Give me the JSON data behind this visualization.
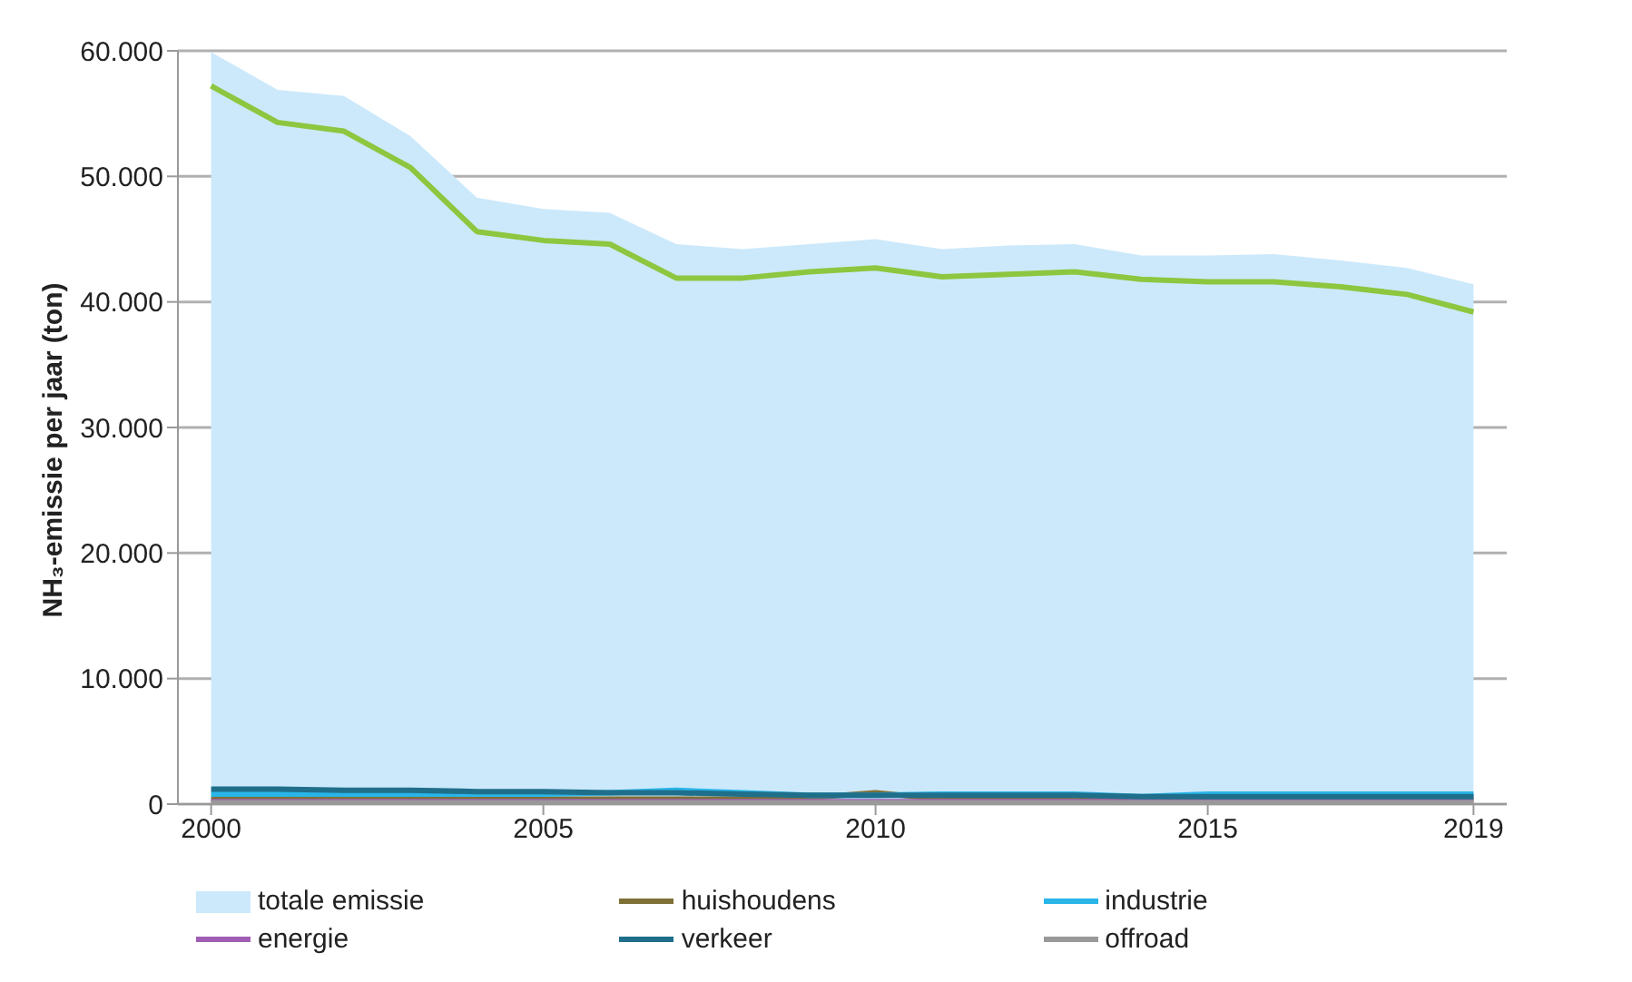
{
  "chart_data": {
    "type": "line",
    "ylabel": "NH₃-emissie per jaar (ton)",
    "x": [
      2000,
      2001,
      2002,
      2003,
      2004,
      2005,
      2006,
      2007,
      2008,
      2009,
      2010,
      2011,
      2012,
      2013,
      2014,
      2015,
      2016,
      2017,
      2018,
      2019
    ],
    "xlim": [
      1999.5,
      2019.5
    ],
    "xticks": [
      2000,
      2005,
      2010,
      2015,
      2019
    ],
    "ylim": [
      0,
      60000
    ],
    "yticks": [
      {
        "value": 0,
        "label": "0"
      },
      {
        "value": 10000,
        "label": "10.000"
      },
      {
        "value": 20000,
        "label": "20.000"
      },
      {
        "value": 30000,
        "label": "30.000"
      },
      {
        "value": 40000,
        "label": "40.000"
      },
      {
        "value": 50000,
        "label": "50.000"
      },
      {
        "value": 60000,
        "label": "60.000"
      }
    ],
    "grid": "y",
    "legend": "bottom",
    "marker": "none",
    "line_style": "solid",
    "series": [
      {
        "name": "totale emissie",
        "type": "area",
        "color": "#cce9fb",
        "values": [
          59900,
          56900,
          56400,
          53200,
          48300,
          47400,
          47100,
          44600,
          44200,
          44600,
          45000,
          44200,
          44500,
          44600,
          43700,
          43700,
          43800,
          43300,
          42700,
          41400
        ]
      },
      {
        "color": "#8dc63f",
        "values": [
          57200,
          54300,
          53600,
          50700,
          45600,
          44900,
          44600,
          41900,
          41900,
          42400,
          42700,
          42000,
          42200,
          42400,
          41800,
          41600,
          41600,
          41200,
          40600,
          39200
        ]
      },
      {
        "name": "huishoudens",
        "color": "#7f7035",
        "values": [
          400,
          400,
          400,
          400,
          400,
          400,
          400,
          400,
          400,
          500,
          900,
          400,
          400,
          400,
          400,
          400,
          400,
          400,
          400,
          400
        ]
      },
      {
        "name": "industrie",
        "color": "#29b5e8",
        "values": [
          800,
          800,
          800,
          800,
          800,
          800,
          900,
          1100,
          900,
          700,
          700,
          800,
          800,
          800,
          600,
          800,
          800,
          800,
          800,
          800
        ]
      },
      {
        "name": "energie",
        "color": "#a05fb4",
        "values": [
          200,
          200,
          200,
          200,
          200,
          200,
          200,
          200,
          200,
          200,
          200,
          200,
          200,
          200,
          200,
          200,
          200,
          200,
          200,
          200
        ]
      },
      {
        "name": "verkeer",
        "color": "#1f6f8b",
        "values": [
          1200,
          1200,
          1100,
          1100,
          1000,
          1000,
          900,
          900,
          800,
          700,
          700,
          700,
          700,
          700,
          600,
          600,
          600,
          600,
          600,
          600
        ]
      },
      {
        "name": "offroad",
        "color": "#999999",
        "values": [
          100,
          100,
          100,
          100,
          100,
          100,
          100,
          100,
          100,
          100,
          100,
          100,
          100,
          100,
          100,
          100,
          100,
          100,
          100,
          100
        ]
      }
    ]
  }
}
